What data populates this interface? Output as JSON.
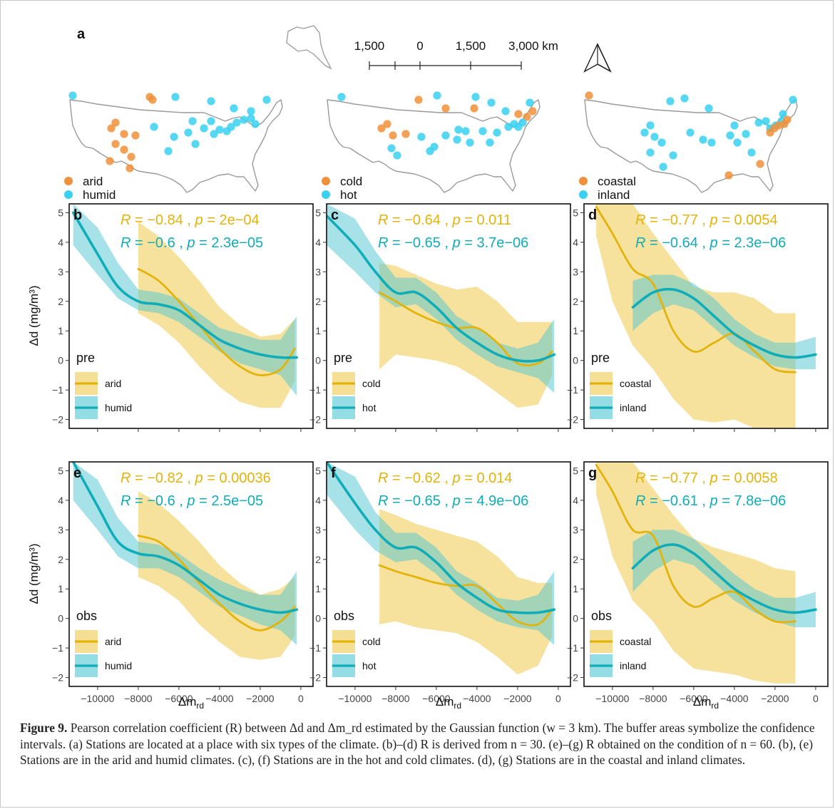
{
  "colors": {
    "arid": "#e3b30c",
    "humid": "#10adb9",
    "band_a": "#efca4d",
    "band_b": "#4fc6d3",
    "dot_a": "#f0903a",
    "dot_b": "#3ad1f0",
    "map": "#9a9a9a"
  },
  "map_panel": {
    "letter": "a",
    "scale_labels": [
      "1,500",
      "0",
      "1,500",
      "3,000 km"
    ],
    "maps": [
      {
        "label_a": "arid",
        "label_b": "humid"
      },
      {
        "label_a": "cold",
        "label_b": "hot"
      },
      {
        "label_a": "coastal",
        "label_b": "inland"
      }
    ]
  },
  "axis_text": {
    "ylabel": "Δd (mg/m³)",
    "xlabel_main": "Δm",
    "xlabel_sub": "rd"
  },
  "caption": {
    "lead": "Figure 9.",
    "text": " Pearson correlation coefficient (R) between Δd and Δm_rd estimated by the Gaussian function (w = 3 km). The buffer areas symbolize the confidence intervals. (a) Stations are located at a place with six types of the climate. (b)–(d) R is derived from n = 30. (e)–(g) R obtained on the condition of n = 60. (b), (e) Stations are in the arid and humid climates. (c), (f) Stations are in the hot and cold climates. (d), (g) Stations are in the coastal and inland climates."
  },
  "chart_data": [
    {
      "type": "line",
      "panel": "b",
      "tag": "pre",
      "xlim": [
        -11400,
        600
      ],
      "ylim": [
        -2.3,
        5.3
      ],
      "x_ticks": [
        -10000,
        -8000,
        -6000,
        -4000,
        -2000,
        0
      ],
      "y_ticks": [
        -2,
        -1,
        0,
        1,
        2,
        3,
        4,
        5
      ],
      "stats": [
        {
          "R": "−0.84",
          "p": "2e−04",
          "series": "arid"
        },
        {
          "R": "−0.6",
          "p": "2.3e−05",
          "series": "humid"
        }
      ],
      "series": [
        {
          "name": "arid",
          "x": [
            -8000,
            -7000,
            -6000,
            -5000,
            -4000,
            -3000,
            -2000,
            -1000,
            -300
          ],
          "y": [
            3.1,
            2.7,
            2.0,
            1.2,
            0.4,
            -0.2,
            -0.5,
            -0.3,
            0.4
          ],
          "lo": [
            1.6,
            1.2,
            0.6,
            -0.2,
            -0.9,
            -1.4,
            -1.6,
            -1.6,
            -0.7
          ],
          "hi": [
            4.7,
            4.2,
            3.5,
            2.7,
            1.8,
            1.2,
            0.8,
            0.9,
            1.4
          ]
        },
        {
          "name": "humid",
          "x": [
            -11200,
            -10000,
            -9000,
            -8000,
            -7000,
            -6000,
            -5000,
            -4000,
            -3000,
            -2000,
            -1000,
            -200
          ],
          "y": [
            5.0,
            3.6,
            2.5,
            2.0,
            1.9,
            1.7,
            1.2,
            0.7,
            0.4,
            0.2,
            0.1,
            0.1
          ],
          "lo": [
            3.9,
            2.9,
            2.1,
            1.7,
            1.6,
            1.3,
            0.8,
            0.3,
            -0.1,
            -0.3,
            -0.5,
            -1.2
          ],
          "hi": [
            5.3,
            4.5,
            3.3,
            2.4,
            2.3,
            2.1,
            1.6,
            1.1,
            0.9,
            0.7,
            0.7,
            1.5
          ]
        }
      ]
    },
    {
      "type": "line",
      "panel": "c",
      "tag": "pre",
      "xlim": [
        -11400,
        600
      ],
      "ylim": [
        -2.3,
        5.3
      ],
      "x_ticks": [
        -10000,
        -8000,
        -6000,
        -4000,
        -2000,
        0
      ],
      "y_ticks": [
        -2,
        -1,
        0,
        1,
        2,
        3,
        4,
        5
      ],
      "stats": [
        {
          "R": "−0.64",
          "p": "0.011",
          "series": "cold"
        },
        {
          "R": "−0.65",
          "p": "3.7e−06",
          "series": "hot"
        }
      ],
      "series": [
        {
          "name": "cold",
          "x": [
            -8800,
            -8000,
            -7000,
            -6000,
            -5000,
            -4000,
            -3000,
            -2000,
            -1000,
            -300
          ],
          "y": [
            2.3,
            2.0,
            1.6,
            1.3,
            1.1,
            1.1,
            0.6,
            -0.1,
            -0.1,
            0.3
          ],
          "lo": [
            -0.3,
            0.2,
            0.1,
            0.0,
            -0.2,
            -0.6,
            -1.1,
            -1.6,
            -1.5,
            -0.5
          ],
          "hi": [
            3.3,
            3.2,
            2.9,
            2.6,
            2.4,
            2.5,
            2.0,
            1.3,
            1.3,
            1.3
          ]
        },
        {
          "name": "hot",
          "x": [
            -11400,
            -10000,
            -9000,
            -8000,
            -7000,
            -6000,
            -5000,
            -4000,
            -3000,
            -2000,
            -1000,
            -200
          ],
          "y": [
            4.9,
            3.9,
            3.0,
            2.3,
            2.3,
            1.8,
            1.1,
            0.6,
            0.2,
            0.0,
            0.0,
            0.2
          ],
          "lo": [
            3.9,
            3.0,
            2.3,
            1.8,
            1.9,
            1.4,
            0.7,
            0.2,
            -0.2,
            -0.4,
            -0.6,
            -1.1
          ],
          "hi": [
            5.3,
            4.8,
            3.7,
            2.8,
            2.8,
            2.3,
            1.5,
            1.1,
            0.6,
            0.4,
            0.6,
            1.4
          ]
        }
      ]
    },
    {
      "type": "line",
      "panel": "d",
      "tag": "pre",
      "xlim": [
        -11400,
        600
      ],
      "ylim": [
        -2.3,
        5.3
      ],
      "x_ticks": [
        -10000,
        -8000,
        -6000,
        -4000,
        -2000,
        0
      ],
      "y_ticks": [
        -2,
        -1,
        0,
        1,
        2,
        3,
        4,
        5
      ],
      "stats": [
        {
          "R": "−0.77",
          "p": "0.0054",
          "series": "coastal"
        },
        {
          "R": "−0.64",
          "p": "2.3e−06",
          "series": "inland"
        }
      ],
      "series": [
        {
          "name": "coastal",
          "x": [
            -10800,
            -10000,
            -9000,
            -8000,
            -7000,
            -6000,
            -5000,
            -4000,
            -3000,
            -2000,
            -1000
          ],
          "y": [
            5.2,
            4.3,
            3.1,
            2.6,
            1.0,
            0.3,
            0.6,
            0.9,
            0.3,
            -0.3,
            -0.4
          ],
          "lo": [
            4.2,
            2.0,
            0.5,
            -0.3,
            -1.3,
            -2.0,
            -2.1,
            -2.0,
            -2.3,
            -2.3,
            -2.3
          ],
          "hi": [
            5.3,
            5.3,
            5.3,
            4.3,
            3.4,
            2.5,
            2.3,
            2.3,
            2.1,
            1.6,
            1.6
          ]
        },
        {
          "name": "inland",
          "x": [
            -9000,
            -8000,
            -7000,
            -6000,
            -5000,
            -4000,
            -3000,
            -2000,
            -1000,
            0
          ],
          "y": [
            1.8,
            2.3,
            2.4,
            2.1,
            1.5,
            0.9,
            0.5,
            0.2,
            0.1,
            0.2
          ],
          "lo": [
            1.0,
            1.6,
            1.9,
            1.7,
            1.1,
            0.5,
            0.1,
            -0.2,
            -0.3,
            -0.3
          ],
          "hi": [
            2.7,
            2.9,
            2.9,
            2.6,
            2.1,
            1.4,
            0.9,
            0.6,
            0.6,
            0.8
          ]
        }
      ]
    },
    {
      "type": "line",
      "panel": "e",
      "tag": "obs",
      "xlim": [
        -11400,
        600
      ],
      "ylim": [
        -2.3,
        5.3
      ],
      "x_ticks": [
        -10000,
        -8000,
        -6000,
        -4000,
        -2000,
        0
      ],
      "y_ticks": [
        -2,
        -1,
        0,
        1,
        2,
        3,
        4,
        5
      ],
      "stats": [
        {
          "R": "−0.82",
          "p": "0.00036",
          "series": "arid"
        },
        {
          "R": "−0.6",
          "p": "2.5e−05",
          "series": "humid"
        }
      ],
      "series": [
        {
          "name": "arid",
          "x": [
            -8000,
            -7000,
            -6000,
            -5000,
            -4000,
            -3000,
            -2000,
            -1000,
            -300
          ],
          "y": [
            2.8,
            2.6,
            2.0,
            1.2,
            0.5,
            -0.1,
            -0.4,
            -0.1,
            0.4
          ],
          "lo": [
            1.4,
            1.1,
            0.6,
            -0.2,
            -0.8,
            -1.3,
            -1.4,
            -1.3,
            -0.6
          ],
          "hi": [
            4.3,
            3.9,
            3.3,
            2.6,
            1.8,
            1.2,
            0.8,
            1.0,
            1.4
          ]
        },
        {
          "name": "humid",
          "x": [
            -11200,
            -10000,
            -9000,
            -8000,
            -7000,
            -6000,
            -5000,
            -4000,
            -3000,
            -2000,
            -1000,
            -200
          ],
          "y": [
            5.3,
            3.8,
            2.6,
            2.2,
            2.1,
            1.8,
            1.3,
            0.8,
            0.5,
            0.3,
            0.2,
            0.3
          ],
          "lo": [
            4.0,
            3.0,
            2.1,
            1.7,
            1.7,
            1.4,
            0.9,
            0.4,
            0.1,
            -0.2,
            -0.4,
            -0.9
          ],
          "hi": [
            5.3,
            4.7,
            3.4,
            2.6,
            2.5,
            2.2,
            1.7,
            1.3,
            1.0,
            0.8,
            0.8,
            1.6
          ]
        }
      ]
    },
    {
      "type": "line",
      "panel": "f",
      "tag": "obs",
      "xlim": [
        -11400,
        600
      ],
      "ylim": [
        -2.3,
        5.3
      ],
      "x_ticks": [
        -10000,
        -8000,
        -6000,
        -4000,
        -2000,
        0
      ],
      "y_ticks": [
        -2,
        -1,
        0,
        1,
        2,
        3,
        4,
        5
      ],
      "stats": [
        {
          "R": "−0.62",
          "p": "0.014",
          "series": "cold"
        },
        {
          "R": "−0.65",
          "p": "4.9e−06",
          "series": "hot"
        }
      ],
      "series": [
        {
          "name": "cold",
          "x": [
            -8800,
            -8000,
            -7000,
            -6000,
            -5000,
            -4000,
            -3000,
            -2000,
            -1000,
            -300
          ],
          "y": [
            1.8,
            1.6,
            1.4,
            1.2,
            1.1,
            1.1,
            0.5,
            -0.1,
            -0.2,
            0.3
          ],
          "lo": [
            -0.2,
            -0.1,
            -0.3,
            -0.4,
            -0.5,
            -0.8,
            -1.3,
            -1.9,
            -1.6,
            -0.6
          ],
          "hi": [
            3.7,
            3.5,
            3.2,
            3.0,
            2.8,
            2.6,
            2.1,
            1.4,
            1.2,
            1.2
          ]
        },
        {
          "name": "hot",
          "x": [
            -11400,
            -10000,
            -9000,
            -8000,
            -7000,
            -6000,
            -5000,
            -4000,
            -3000,
            -2000,
            -1000,
            -200
          ],
          "y": [
            5.3,
            3.9,
            3.0,
            2.4,
            2.4,
            1.9,
            1.2,
            0.7,
            0.3,
            0.2,
            0.2,
            0.3
          ],
          "lo": [
            4.2,
            3.0,
            2.3,
            1.9,
            2.0,
            1.5,
            0.8,
            0.3,
            -0.1,
            -0.3,
            -0.4,
            -0.9
          ],
          "hi": [
            5.3,
            4.8,
            3.6,
            2.9,
            2.9,
            2.4,
            1.6,
            1.2,
            0.7,
            0.6,
            0.8,
            1.6
          ]
        }
      ]
    },
    {
      "type": "line",
      "panel": "g",
      "tag": "obs",
      "xlim": [
        -11400,
        600
      ],
      "ylim": [
        -2.3,
        5.3
      ],
      "x_ticks": [
        -10000,
        -8000,
        -6000,
        -4000,
        -2000,
        0
      ],
      "y_ticks": [
        -2,
        -1,
        0,
        1,
        2,
        3,
        4,
        5
      ],
      "stats": [
        {
          "R": "−0.77",
          "p": "0.0058",
          "series": "coastal"
        },
        {
          "R": "−0.61",
          "p": "7.8e−06",
          "series": "inland"
        }
      ],
      "series": [
        {
          "name": "coastal",
          "x": [
            -10800,
            -10000,
            -9000,
            -8000,
            -7000,
            -6000,
            -5000,
            -4000,
            -3000,
            -2000,
            -1000
          ],
          "y": [
            5.2,
            4.3,
            3.0,
            2.8,
            1.1,
            0.4,
            0.7,
            0.9,
            0.3,
            -0.1,
            -0.1
          ],
          "lo": [
            4.2,
            2.1,
            0.6,
            -0.1,
            -1.1,
            -1.7,
            -1.8,
            -1.9,
            -2.1,
            -2.2,
            -2.2
          ],
          "hi": [
            5.3,
            5.3,
            5.3,
            4.4,
            3.5,
            2.7,
            2.4,
            2.2,
            2.0,
            1.7,
            1.6
          ]
        },
        {
          "name": "inland",
          "x": [
            -9000,
            -8000,
            -7000,
            -6000,
            -5000,
            -4000,
            -3000,
            -2000,
            -1000,
            0
          ],
          "y": [
            1.7,
            2.3,
            2.5,
            2.2,
            1.6,
            1.0,
            0.6,
            0.3,
            0.2,
            0.3
          ],
          "lo": [
            0.9,
            1.6,
            2.0,
            1.8,
            1.2,
            0.6,
            0.2,
            -0.1,
            -0.3,
            -0.3
          ],
          "hi": [
            2.6,
            3.0,
            3.0,
            2.7,
            2.1,
            1.5,
            1.0,
            0.7,
            0.7,
            0.9
          ]
        }
      ]
    }
  ]
}
